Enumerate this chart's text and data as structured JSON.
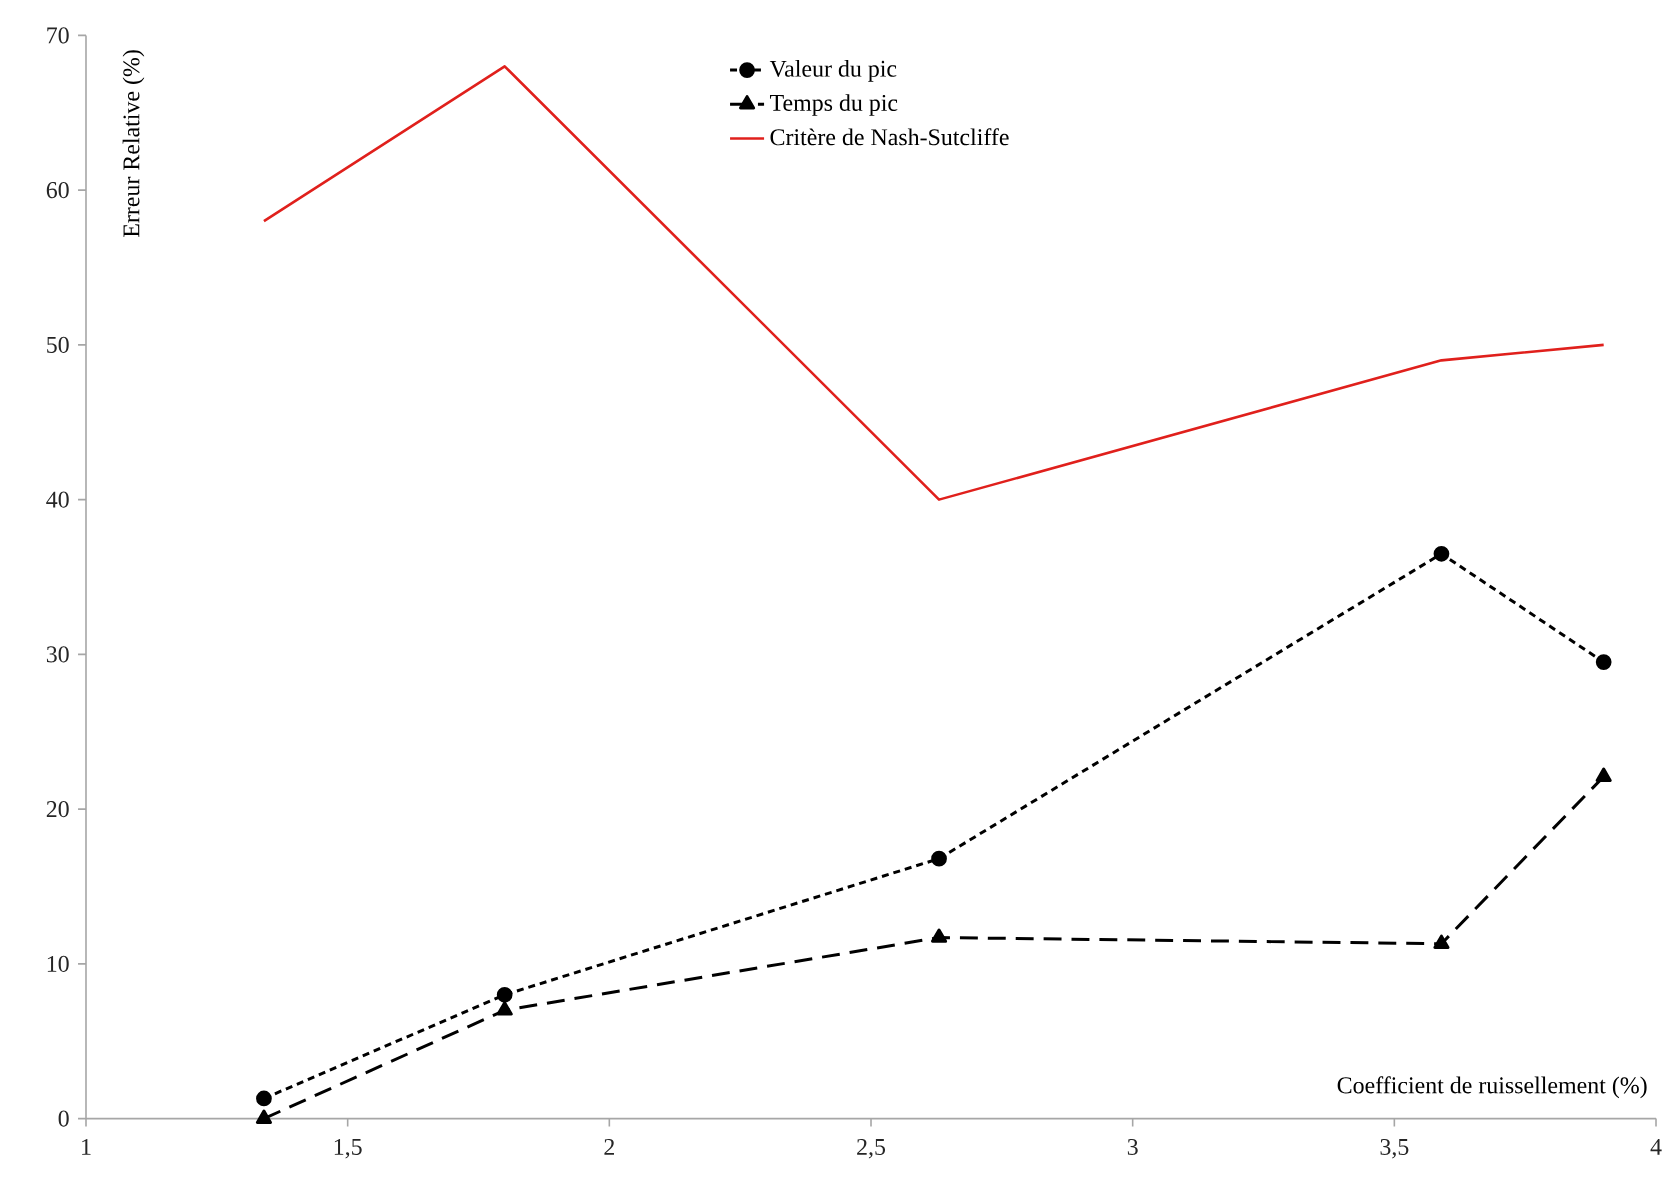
{
  "chart_data": {
    "type": "line",
    "xlabel": "Coefficient de ruissellement (%)",
    "ylabel": "Erreur Relative (%)",
    "xlim": [
      1,
      4
    ],
    "ylim": [
      0,
      70
    ],
    "xticks": [
      1,
      {
        "value": 1.5,
        "label": "1,5"
      },
      2,
      {
        "value": 2.5,
        "label": "2,5"
      },
      3,
      {
        "value": 3.5,
        "label": "3,5"
      },
      4
    ],
    "yticks": [
      0,
      10,
      20,
      30,
      40,
      50,
      60,
      70
    ],
    "x": [
      1.34,
      1.8,
      2.63,
      3.59,
      3.9
    ],
    "series": [
      {
        "name": "Valeur du pic",
        "color": "#000000",
        "marker": "circle",
        "line_style": "dotted",
        "values": [
          1.3,
          8,
          16.8,
          36.5,
          29.5
        ]
      },
      {
        "name": "Temps du pic",
        "color": "#000000",
        "marker": "triangle",
        "line_style": "dashed",
        "values": [
          0,
          7,
          11.7,
          11.3,
          22.1
        ]
      },
      {
        "name": "Critère de Nash-Sutcliffe",
        "color": "#e0201c",
        "marker": "none",
        "line_style": "solid",
        "values": [
          58,
          68,
          40,
          49,
          50
        ]
      }
    ],
    "legend": "top",
    "grid": false
  }
}
